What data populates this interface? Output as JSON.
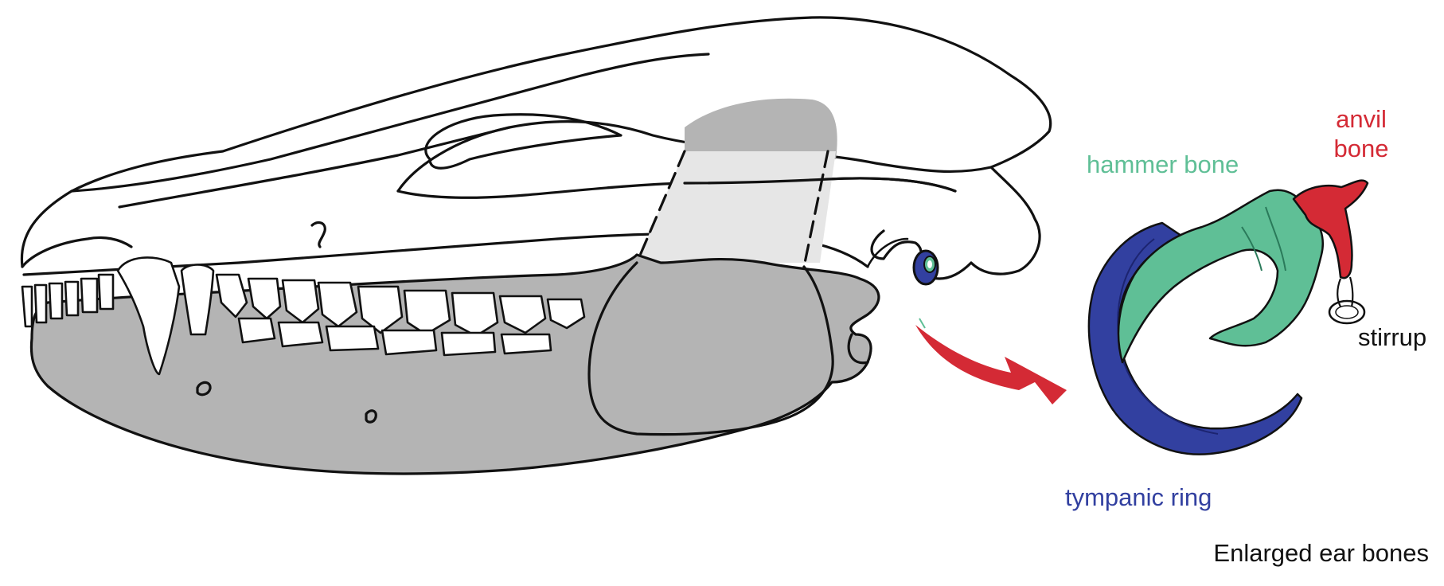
{
  "labels": {
    "hammer": "hammer bone",
    "anvil_line1": "anvil",
    "anvil_line2": "bone",
    "stirrup": "stirrup",
    "tympanic": "tympanic ring",
    "caption": "Enlarged ear bones"
  },
  "colors": {
    "hammer": "#5fbf96",
    "anvil": "#d42a35",
    "tympanic": "#3240a0",
    "stirrup": "#111111",
    "caption": "#111111",
    "jaw": "#b4b4b4",
    "muscle_light": "#e6e6e6",
    "arrow": "#d42a35"
  }
}
